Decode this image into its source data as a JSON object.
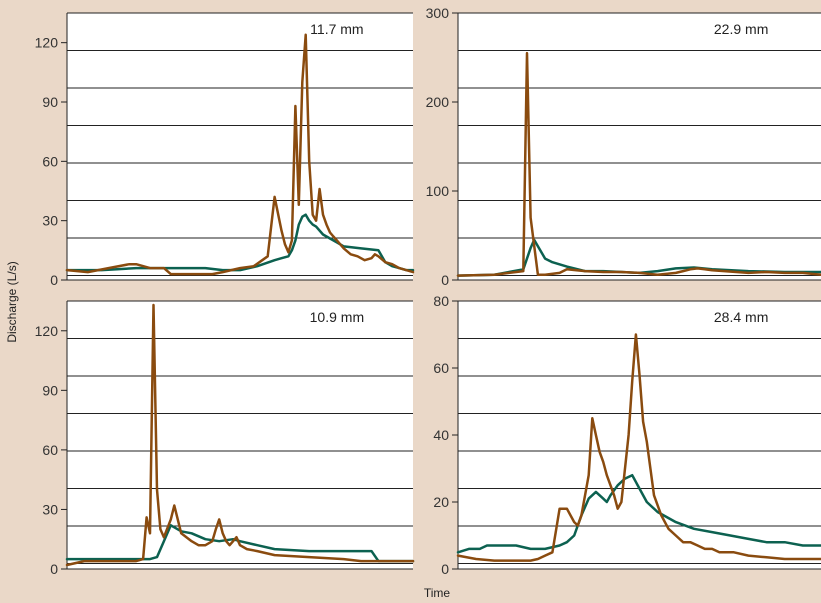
{
  "axes": {
    "ylabel": "Discharge (L/s)",
    "xlabel": "Time"
  },
  "colors": {
    "background": "#ead8c8",
    "plot": "#ffffff",
    "brown": "#8a4b0f",
    "green": "#0c6150",
    "grid": "#222222"
  },
  "chart_data": [
    {
      "type": "line",
      "annotation": "11.7 mm",
      "ylim": [
        0,
        135
      ],
      "yticks": [
        0,
        30,
        60,
        90,
        120
      ],
      "xlim": [
        0,
        100
      ],
      "grid": true,
      "series": [
        {
          "color": "#8a4b0f",
          "x": [
            0,
            6,
            12,
            18,
            20,
            24,
            28,
            30,
            34,
            36,
            38,
            40,
            42,
            45,
            50,
            54,
            58,
            60,
            62,
            63,
            64,
            65,
            66,
            67,
            68,
            69,
            70,
            71,
            72,
            73,
            74,
            75,
            76,
            77,
            78,
            80,
            82,
            84,
            86,
            88,
            89,
            90,
            92,
            94,
            96,
            98,
            100
          ],
          "y": [
            5,
            4,
            6,
            8,
            8,
            6,
            6,
            3,
            3,
            3,
            3,
            3,
            3,
            4,
            6,
            7,
            12,
            42,
            25,
            18,
            14,
            20,
            88,
            38,
            100,
            124,
            60,
            33,
            30,
            46,
            33,
            28,
            24,
            22,
            20,
            16,
            13,
            12,
            10,
            11,
            13,
            12,
            9,
            8,
            6,
            5,
            4
          ]
        },
        {
          "color": "#0c6150",
          "x": [
            0,
            10,
            20,
            30,
            40,
            45,
            50,
            55,
            60,
            62,
            64,
            65,
            66,
            67,
            68,
            69,
            70,
            71,
            72,
            74,
            76,
            78,
            80,
            85,
            90,
            92,
            94,
            96,
            98,
            100
          ],
          "y": [
            5,
            5,
            6,
            6,
            6,
            5,
            5,
            7,
            10,
            11,
            12,
            15,
            20,
            28,
            32,
            33,
            30,
            28,
            27,
            23,
            21,
            19,
            17,
            16,
            15,
            9,
            7,
            6,
            5,
            5
          ]
        }
      ]
    },
    {
      "type": "line",
      "annotation": "22.9 mm",
      "ylim": [
        0,
        300
      ],
      "yticks": [
        0,
        100,
        200,
        300
      ],
      "xlim": [
        0,
        100
      ],
      "grid": true,
      "series": [
        {
          "color": "#8a4b0f",
          "x": [
            0,
            10,
            18,
            19,
            20,
            22,
            24,
            28,
            30,
            35,
            40,
            45,
            50,
            55,
            60,
            62,
            64,
            66,
            68,
            70,
            80,
            85,
            90,
            95,
            100
          ],
          "y": [
            5,
            6,
            10,
            255,
            70,
            6,
            6,
            8,
            12,
            10,
            9,
            9,
            8,
            6,
            8,
            10,
            12,
            13,
            12,
            11,
            8,
            9,
            8,
            8,
            6
          ]
        },
        {
          "color": "#0c6150",
          "x": [
            0,
            10,
            18,
            20,
            21,
            22,
            24,
            26,
            30,
            35,
            40,
            45,
            50,
            55,
            60,
            65,
            70,
            80,
            90,
            100
          ],
          "y": [
            5,
            6,
            12,
            36,
            45,
            38,
            24,
            20,
            15,
            10,
            10,
            9,
            8,
            10,
            13,
            14,
            12,
            10,
            9,
            9
          ]
        }
      ]
    },
    {
      "type": "line",
      "annotation": "10.9 mm",
      "ylim": [
        0,
        135
      ],
      "yticks": [
        0,
        30,
        60,
        90,
        120
      ],
      "xlim": [
        0,
        100
      ],
      "grid": true,
      "series": [
        {
          "color": "#8a4b0f",
          "x": [
            0,
            5,
            10,
            15,
            20,
            22,
            23,
            24,
            25,
            26,
            27,
            28,
            30,
            31,
            33,
            36,
            38,
            40,
            42,
            43,
            44,
            45,
            46,
            47,
            48,
            49,
            50,
            52,
            55,
            60,
            70,
            80,
            85,
            90,
            100
          ],
          "y": [
            2,
            4,
            4,
            4,
            4,
            5,
            26,
            18,
            133,
            40,
            20,
            16,
            25,
            32,
            18,
            14,
            12,
            12,
            14,
            20,
            25,
            18,
            14,
            12,
            14,
            16,
            12,
            10,
            9,
            7,
            6,
            5,
            4,
            4,
            4
          ]
        },
        {
          "color": "#0c6150",
          "x": [
            0,
            10,
            20,
            24,
            26,
            28,
            30,
            33,
            36,
            40,
            44,
            48,
            50,
            55,
            60,
            70,
            80,
            88,
            90,
            100
          ],
          "y": [
            5,
            5,
            5,
            5,
            6,
            14,
            22,
            19,
            18,
            15,
            14,
            15,
            14,
            12,
            10,
            9,
            9,
            9,
            4,
            4
          ]
        }
      ]
    },
    {
      "type": "line",
      "annotation": "28.4 mm",
      "ylim": [
        0,
        80
      ],
      "yticks": [
        0,
        20,
        40,
        60,
        80
      ],
      "xlim": [
        0,
        100
      ],
      "grid": true,
      "series": [
        {
          "color": "#8a4b0f",
          "x": [
            0,
            5,
            10,
            15,
            20,
            22,
            24,
            26,
            28,
            30,
            32,
            33,
            34,
            36,
            37,
            38,
            39,
            40,
            41,
            42,
            43,
            44,
            45,
            47,
            48,
            49,
            50,
            51,
            52,
            53,
            54,
            56,
            58,
            60,
            62,
            64,
            66,
            68,
            70,
            72,
            74,
            76,
            80,
            85,
            90,
            95,
            100
          ],
          "y": [
            4,
            3,
            2.5,
            2.5,
            2.5,
            3,
            4,
            5,
            18,
            18,
            14,
            13,
            16,
            28,
            45,
            40,
            35,
            32,
            28,
            25,
            22,
            18,
            20,
            40,
            56,
            70,
            58,
            44,
            38,
            30,
            22,
            16,
            12,
            10,
            8,
            8,
            7,
            6,
            6,
            5,
            5,
            5,
            4,
            3.5,
            3,
            3,
            3
          ]
        },
        {
          "color": "#0c6150",
          "x": [
            0,
            3,
            6,
            8,
            12,
            16,
            20,
            24,
            28,
            30,
            32,
            34,
            36,
            38,
            40,
            41,
            42,
            44,
            46,
            48,
            50,
            52,
            55,
            60,
            65,
            70,
            75,
            80,
            85,
            90,
            95,
            100
          ],
          "y": [
            5,
            6,
            6,
            7,
            7,
            7,
            6,
            6,
            7,
            8,
            10,
            16,
            21,
            23,
            21,
            20,
            22,
            25,
            27,
            28,
            24,
            20,
            17,
            14,
            12,
            11,
            10,
            9,
            8,
            8,
            7,
            7
          ]
        }
      ]
    }
  ]
}
